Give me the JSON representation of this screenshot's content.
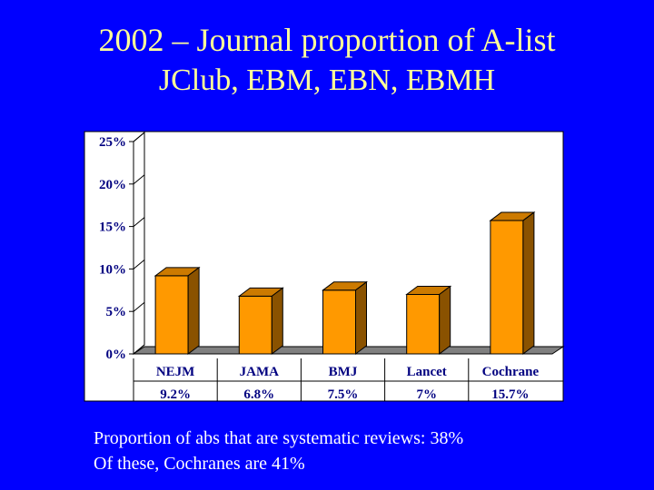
{
  "slide": {
    "title": "2002 – Journal proportion of A-list",
    "subtitle": "JClub, EBM, EBN, EBMH",
    "notes": [
      "Proportion of abs that are systematic reviews: 38%",
      "Of these, Cochranes are 41%"
    ]
  },
  "chart_data": {
    "type": "bar",
    "categories": [
      "NEJM",
      "JAMA",
      "BMJ",
      "Lancet",
      "Cochrane"
    ],
    "values": [
      9.2,
      6.8,
      7.5,
      7,
      15.7
    ],
    "value_labels": [
      "9.2%",
      "6.8%",
      "7.5%",
      "7%",
      "15.7%"
    ],
    "y_ticks": [
      "0%",
      "5%",
      "10%",
      "15%",
      "20%",
      "25%"
    ],
    "ylim": [
      0,
      25
    ],
    "title": "",
    "xlabel": "",
    "ylabel": "",
    "grid": false,
    "legend": "none",
    "colors": {
      "bar_front": "#ff9900",
      "bar_top": "#cc7a00",
      "bar_side": "#8a5200",
      "plot_bg": "#ffffff",
      "floor": "#808080"
    }
  }
}
